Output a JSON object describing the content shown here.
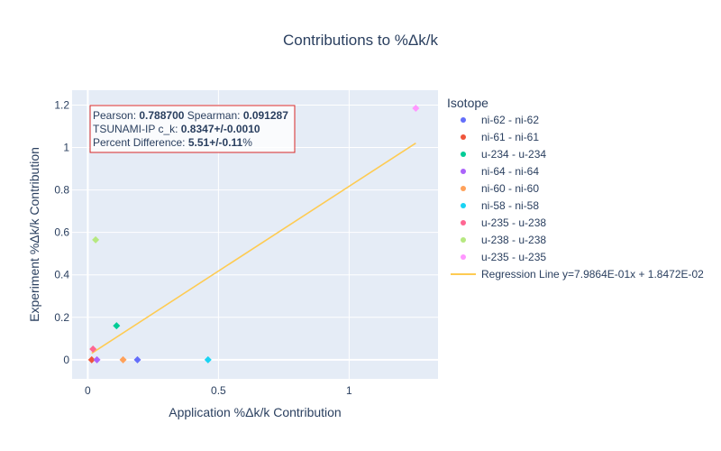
{
  "chart_data": {
    "type": "scatter",
    "title": "Contributions to %Δk/k",
    "xlabel": "Application %Δk/k Contribution",
    "ylabel": "Experiment %Δk/k Contribution",
    "xlim": [
      -0.06,
      1.34
    ],
    "ylim": [
      -0.09,
      1.27
    ],
    "x_ticks": [
      0,
      0.5,
      1
    ],
    "x_tick_labels": [
      "0",
      "0.5",
      "1"
    ],
    "y_ticks": [
      0,
      0.2,
      0.4,
      0.6,
      0.8,
      1,
      1.2
    ],
    "y_tick_labels": [
      "0",
      "0.2",
      "0.4",
      "0.6",
      "0.8",
      "1",
      "1.2"
    ],
    "grid": true,
    "legend_title": "Isotope",
    "legend_position": "right",
    "series": [
      {
        "name": "ni-62 - ni-62",
        "color": "#636efa",
        "points": [
          {
            "x": 0.19,
            "y": 0.0
          }
        ]
      },
      {
        "name": "ni-61 - ni-61",
        "color": "#ef553b",
        "points": [
          {
            "x": 0.015,
            "y": 0.0
          }
        ]
      },
      {
        "name": "u-234 - u-234",
        "color": "#00cc96",
        "points": [
          {
            "x": 0.11,
            "y": 0.16
          }
        ]
      },
      {
        "name": "ni-64 - ni-64",
        "color": "#ab63fa",
        "points": [
          {
            "x": 0.035,
            "y": 0.0
          }
        ]
      },
      {
        "name": "ni-60 - ni-60",
        "color": "#ffa15a",
        "points": [
          {
            "x": 0.135,
            "y": 0.0
          }
        ]
      },
      {
        "name": "ni-58 - ni-58",
        "color": "#19d3f3",
        "points": [
          {
            "x": 0.46,
            "y": 0.0
          }
        ]
      },
      {
        "name": "u-235 - u-238",
        "color": "#ff6692",
        "points": [
          {
            "x": 0.02,
            "y": 0.05
          }
        ]
      },
      {
        "name": "u-238 - u-238",
        "color": "#b6e880",
        "points": [
          {
            "x": 0.03,
            "y": 0.565
          }
        ]
      },
      {
        "name": "u-235 - u-235",
        "color": "#ff97ff",
        "points": [
          {
            "x": 1.255,
            "y": 1.185
          }
        ]
      }
    ],
    "regression": {
      "name": "Regression Line y=7.9864E-01x + 1.8472E-02",
      "color": "#fecb52",
      "slope": 0.79864,
      "intercept": 0.018472,
      "x_range": [
        0.015,
        1.255
      ]
    },
    "annotation": {
      "border_color": "#d62728",
      "lines": [
        [
          {
            "text": "Pearson: ",
            "bold": false
          },
          {
            "text": "0.788700",
            "bold": true
          },
          {
            "text": " Spearman: ",
            "bold": false
          },
          {
            "text": "0.091287",
            "bold": true
          }
        ],
        [
          {
            "text": "TSUNAMI-IP c_k: ",
            "bold": false
          },
          {
            "text": "0.8347+/-0.0010",
            "bold": true
          }
        ],
        [
          {
            "text": "Percent Difference: ",
            "bold": false
          },
          {
            "text": "5.51+/-0.11",
            "bold": true
          },
          {
            "text": "%",
            "bold": false
          }
        ]
      ]
    }
  }
}
